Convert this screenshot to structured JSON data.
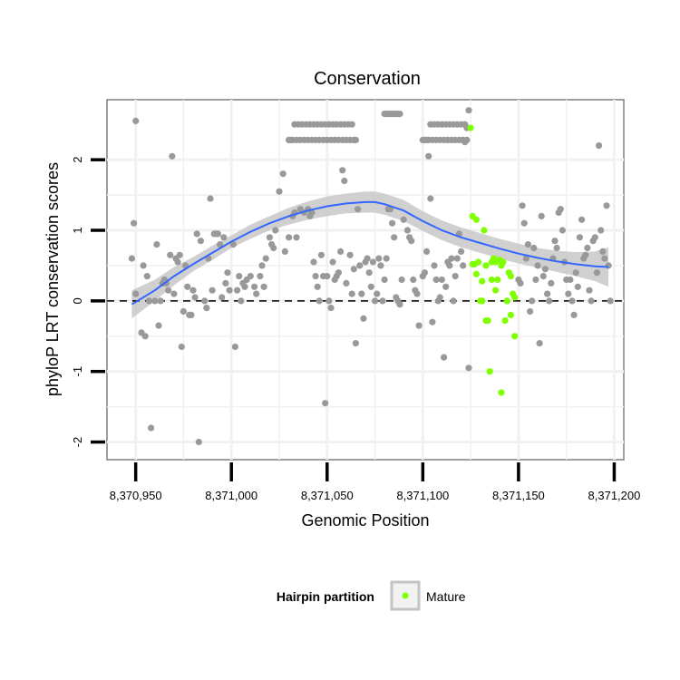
{
  "chart_data": {
    "type": "scatter",
    "title": "Conservation",
    "xlabel": "Genomic Position",
    "ylabel": "phyloP LRT conservation scores",
    "xlim": [
      8370935,
      8371205
    ],
    "ylim": [
      -2.25,
      2.85
    ],
    "x_ticks": [
      8370950,
      8371000,
      8371050,
      8371100,
      8371150,
      8371200
    ],
    "x_tick_labels": [
      "8,370,950",
      "8,371,000",
      "8,371,050",
      "8,371,100",
      "8,371,150",
      "8,371,200"
    ],
    "y_ticks": [
      -2,
      -1,
      0,
      1,
      2
    ],
    "y_tick_labels": [
      "-2",
      "-1",
      "0",
      "1",
      "2"
    ],
    "reference_line": {
      "y": 0,
      "style": "dashed"
    },
    "legend": {
      "title": "Hairpin partition",
      "entries": [
        "Mature"
      ],
      "position": "bottom"
    },
    "colors": {
      "other": "#999999",
      "mature": "#7fff00",
      "smooth": "#3366ff",
      "band": "#c8c8c8",
      "panel_border": "#7f7f7f",
      "grid": "#f1f1f1"
    },
    "series": [
      {
        "group": "other",
        "x": [
          8370948,
          8370949,
          8370950,
          8370950,
          8370953,
          8370954,
          8370955,
          8370956,
          8370957,
          8370958,
          8370960,
          8370961,
          8370962,
          8370963,
          8370964,
          8370965,
          8370966,
          8370967,
          8370968,
          8370969,
          8370970,
          8370971,
          8370972,
          8370973,
          8370974,
          8370975,
          8370976,
          8370977,
          8370978,
          8370979,
          8370980,
          8370981,
          8370982,
          8370983,
          8370984,
          8370986,
          8370987,
          8370988,
          8370989,
          8370990,
          8370991,
          8370992,
          8370993,
          8370994,
          8370995,
          8370996,
          8370997,
          8370998,
          8370999,
          8371001,
          8371002,
          8371003,
          8371004,
          8371005,
          8371006,
          8371007,
          8371008,
          8371010,
          8371012,
          8371013,
          8371015,
          8371016,
          8371017,
          8371018,
          8371020,
          8371021,
          8371022,
          8371023,
          8371025,
          8371027,
          8371028,
          8371030,
          8371032,
          8371033,
          8371034,
          8371036,
          8371038,
          8371040,
          8371041,
          8371042,
          8371043,
          8371044,
          8371045,
          8371046,
          8371047,
          8371048,
          8371049,
          8371050,
          8371051,
          8371052,
          8371053,
          8371054,
          8371055,
          8371056,
          8371057,
          8371058,
          8371059,
          8371060,
          8371062,
          8371063,
          8371064,
          8371065,
          8371066,
          8371067,
          8371068,
          8371069,
          8371070,
          8371071,
          8371072,
          8371073,
          8371074,
          8371075,
          8371076,
          8371077,
          8371078,
          8371079,
          8371080,
          8371081,
          8371082,
          8371083,
          8371084,
          8371085,
          8371086,
          8371087,
          8371088,
          8371089,
          8371090,
          8371092,
          8371093,
          8371094,
          8371095,
          8371096,
          8371097,
          8371098,
          8371100,
          8371101,
          8371102,
          8371103,
          8371104,
          8371105,
          8371106,
          8371107,
          8371108,
          8371109,
          8371110,
          8371111,
          8371112,
          8371113,
          8371114,
          8371115,
          8371116,
          8371117,
          8371118,
          8371119,
          8371120,
          8371121,
          8371122,
          8371123,
          8371124,
          8371150,
          8371151,
          8371152,
          8371153,
          8371154,
          8371155,
          8371156,
          8371157,
          8371158,
          8371159,
          8371160,
          8371161,
          8371162,
          8371163,
          8371164,
          8371165,
          8371166,
          8371167,
          8371168,
          8371169,
          8371170,
          8371171,
          8371172,
          8371173,
          8371174,
          8371175,
          8371176,
          8371177,
          8371178,
          8371179,
          8371180,
          8371181,
          8371182,
          8371183,
          8371184,
          8371185,
          8371186,
          8371187,
          8371188,
          8371189,
          8371190,
          8371191,
          8371192,
          8371193,
          8371194,
          8371195,
          8371196,
          8371197,
          8371198
        ],
        "y": [
          0.6,
          1.1,
          2.55,
          0.1,
          -0.45,
          0.5,
          -0.5,
          0.35,
          0.0,
          -1.8,
          0.0,
          0.8,
          -0.35,
          0.0,
          0.25,
          0.3,
          0.25,
          0.15,
          0.65,
          2.05,
          0.1,
          0.6,
          0.55,
          0.65,
          -0.65,
          -0.15,
          0.5,
          0.2,
          -0.2,
          -0.2,
          0.15,
          0.05,
          0.95,
          -2.0,
          0.85,
          0.0,
          -0.1,
          0.6,
          1.45,
          0.15,
          0.95,
          0.95,
          0.95,
          0.8,
          0.05,
          0.9,
          0.25,
          0.4,
          0.15,
          0.8,
          -0.65,
          0.15,
          0.35,
          0.0,
          0.25,
          0.2,
          0.3,
          0.35,
          0.2,
          0.1,
          0.35,
          0.5,
          0.2,
          0.6,
          0.9,
          0.8,
          0.75,
          1.0,
          1.55,
          1.8,
          0.7,
          0.9,
          1.2,
          1.25,
          0.9,
          1.3,
          1.25,
          1.3,
          1.2,
          1.25,
          0.55,
          0.35,
          0.2,
          0.0,
          0.65,
          0.35,
          -1.45,
          0.35,
          0.0,
          -0.1,
          0.55,
          0.3,
          0.35,
          0.4,
          0.7,
          1.85,
          1.7,
          0.25,
          0.65,
          0.1,
          0.45,
          -0.6,
          1.3,
          0.5,
          0.1,
          -0.25,
          0.55,
          0.6,
          0.4,
          0.2,
          0.55,
          0.0,
          0.1,
          0.6,
          0.5,
          0.0,
          0.3,
          0.6,
          1.3,
          1.3,
          1.1,
          0.9,
          0.05,
          0.0,
          -0.05,
          0.3,
          1.15,
          1.0,
          0.9,
          0.85,
          0.3,
          0.15,
          0.1,
          -0.35,
          0.35,
          0.4,
          0.7,
          2.05,
          1.45,
          -0.3,
          0.5,
          0.3,
          0.0,
          0.05,
          0.3,
          -0.8,
          0.2,
          0.55,
          0.5,
          0.6,
          0.0,
          0.35,
          0.6,
          0.95,
          0.7,
          0.5,
          2.25,
          2.45,
          -0.95,
          0.3,
          0.25,
          1.35,
          1.1,
          0.6,
          0.8,
          -0.15,
          0.0,
          0.75,
          0.3,
          0.5,
          -0.6,
          1.2,
          0.35,
          0.45,
          0.1,
          0.0,
          0.25,
          0.6,
          0.85,
          0.75,
          1.25,
          1.3,
          1.0,
          0.55,
          0.3,
          0.1,
          0.3,
          0.0,
          -0.2,
          0.4,
          0.2,
          0.9,
          1.15,
          0.6,
          0.65,
          0.75,
          0.15,
          0.0,
          0.85,
          0.9,
          0.4,
          2.2,
          1.0,
          0.7,
          0.6,
          1.35,
          0.5,
          0.0
        ]
      },
      {
        "group": "other",
        "x": [
          8371030,
          8371031,
          8371032,
          8371033,
          8371034,
          8371035,
          8371036,
          8371037,
          8371038,
          8371039,
          8371040,
          8371041,
          8371042,
          8371043,
          8371044,
          8371045,
          8371046,
          8371047,
          8371048,
          8371049,
          8371050,
          8371051,
          8371052,
          8371053,
          8371054,
          8371055,
          8371056,
          8371057,
          8371058,
          8371059,
          8371060,
          8371061,
          8371062,
          8371063,
          8371064,
          8371065,
          8371080,
          8371081,
          8371082,
          8371083,
          8371084,
          8371085,
          8371086,
          8371087,
          8371088,
          8371100,
          8371101,
          8371102,
          8371103,
          8371104,
          8371105,
          8371106,
          8371107,
          8371108,
          8371109,
          8371110,
          8371111,
          8371112,
          8371113,
          8371114,
          8371115,
          8371116,
          8371117,
          8371118,
          8371119,
          8371120,
          8371121,
          8371122,
          8371123,
          8371124
        ],
        "y": [
          2.28,
          2.28,
          2.28,
          2.5,
          2.28,
          2.5,
          2.28,
          2.5,
          2.28,
          2.5,
          2.28,
          2.5,
          2.28,
          2.5,
          2.28,
          2.5,
          2.28,
          2.5,
          2.28,
          2.5,
          2.28,
          2.5,
          2.28,
          2.5,
          2.28,
          2.5,
          2.28,
          2.5,
          2.28,
          2.5,
          2.28,
          2.5,
          2.28,
          2.5,
          2.28,
          2.28,
          2.65,
          2.65,
          2.65,
          2.65,
          2.65,
          2.65,
          2.65,
          2.65,
          2.65,
          2.28,
          2.28,
          2.28,
          2.28,
          2.5,
          2.28,
          2.5,
          2.28,
          2.5,
          2.28,
          2.5,
          2.28,
          2.5,
          2.28,
          2.5,
          2.28,
          2.5,
          2.28,
          2.5,
          2.28,
          2.5,
          2.28,
          2.5,
          2.28,
          2.7
        ]
      },
      {
        "group": "mature",
        "name": "Mature",
        "x": [
          8371125,
          8371126,
          8371127,
          8371128,
          8371129,
          8371130,
          8371131,
          8371132,
          8371133,
          8371134,
          8371135,
          8371136,
          8371137,
          8371138,
          8371139,
          8371140,
          8371141,
          8371142,
          8371143,
          8371144,
          8371145,
          8371146,
          8371147,
          8371148,
          8371126,
          8371128,
          8371131,
          8371133,
          8371136,
          8371138,
          8371141,
          8371144,
          8371146,
          8371148
        ],
        "y": [
          2.45,
          1.2,
          0.52,
          1.15,
          0.55,
          0.0,
          0.28,
          1.0,
          0.5,
          -0.28,
          -1.0,
          0.55,
          0.6,
          0.15,
          0.3,
          0.58,
          -1.3,
          0.55,
          -0.28,
          0.0,
          0.4,
          -0.2,
          0.1,
          -0.5,
          0.52,
          0.38,
          0.0,
          -0.28,
          0.3,
          0.55,
          0.5,
          0.0,
          0.35,
          0.05
        ]
      }
    ],
    "smooth": {
      "x": [
        8370948,
        8370960,
        8370970,
        8370980,
        8370990,
        8371000,
        8371010,
        8371020,
        8371030,
        8371040,
        8371050,
        8371060,
        8371070,
        8371075,
        8371080,
        8371090,
        8371100,
        8371110,
        8371120,
        8371130,
        8371140,
        8371150,
        8371160,
        8371170,
        8371180,
        8371190,
        8371197
      ],
      "y": [
        -0.05,
        0.15,
        0.35,
        0.52,
        0.68,
        0.84,
        0.98,
        1.1,
        1.2,
        1.28,
        1.34,
        1.38,
        1.4,
        1.4,
        1.37,
        1.28,
        1.13,
        1.0,
        0.9,
        0.82,
        0.74,
        0.67,
        0.61,
        0.56,
        0.52,
        0.49,
        0.48
      ],
      "lower": [
        -0.25,
        0.0,
        0.22,
        0.42,
        0.58,
        0.75,
        0.88,
        1.0,
        1.08,
        1.15,
        1.2,
        1.24,
        1.25,
        1.25,
        1.22,
        1.13,
        0.99,
        0.86,
        0.76,
        0.68,
        0.6,
        0.53,
        0.47,
        0.41,
        0.35,
        0.28,
        0.2
      ],
      "upper": [
        0.15,
        0.3,
        0.48,
        0.62,
        0.78,
        0.93,
        1.08,
        1.2,
        1.32,
        1.41,
        1.48,
        1.52,
        1.55,
        1.55,
        1.52,
        1.43,
        1.27,
        1.14,
        1.04,
        0.96,
        0.88,
        0.81,
        0.75,
        0.71,
        0.69,
        0.7,
        0.76
      ]
    }
  }
}
